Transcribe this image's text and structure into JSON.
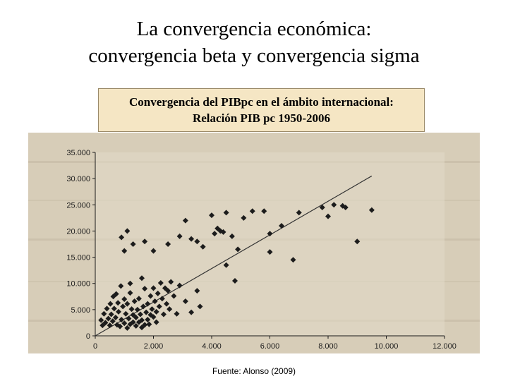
{
  "slide": {
    "title_line1": "La convergencia económica:",
    "title_line2": "convergencia beta y convergencia sigma",
    "source": "Fuente: Alonso (2009)"
  },
  "caption": {
    "line1": "Convergencia del PIBpc en el ámbito internacional:",
    "line2": "Relación PIB pc 1950-2006"
  },
  "colors": {
    "paper": "#d7cdb8",
    "marker": "#1c1c1c",
    "caption_bg": "#f5e6c4"
  },
  "chart_data": {
    "type": "scatter",
    "title": "",
    "xlabel": "",
    "ylabel": "",
    "xlim": [
      0,
      12000
    ],
    "ylim": [
      0,
      35000
    ],
    "x_ticks": [
      0,
      2000,
      4000,
      6000,
      8000,
      10000,
      12000
    ],
    "x_tick_labels": [
      "0",
      "2.000",
      "4.000",
      "6.000",
      "8.000",
      "10.000",
      "12.000"
    ],
    "y_ticks": [
      0,
      5000,
      10000,
      15000,
      20000,
      25000,
      30000,
      35000
    ],
    "y_tick_labels": [
      "0",
      "5.000",
      "10.000",
      "15.000",
      "20.000",
      "25.000",
      "30.000",
      "35.000"
    ],
    "grid": false,
    "legend": "none",
    "trend_line": {
      "x": [
        0,
        9500
      ],
      "y": [
        0,
        30500
      ]
    },
    "points": [
      [
        200,
        3000
      ],
      [
        250,
        2000
      ],
      [
        300,
        4200
      ],
      [
        350,
        2500
      ],
      [
        400,
        5200
      ],
      [
        450,
        3300
      ],
      [
        500,
        2000
      ],
      [
        520,
        6100
      ],
      [
        550,
        4100
      ],
      [
        600,
        2800
      ],
      [
        620,
        7500
      ],
      [
        650,
        5200
      ],
      [
        700,
        3500
      ],
      [
        720,
        8000
      ],
      [
        750,
        2100
      ],
      [
        780,
        6300
      ],
      [
        800,
        4600
      ],
      [
        850,
        1800
      ],
      [
        880,
        9500
      ],
      [
        900,
        3100
      ],
      [
        950,
        5600
      ],
      [
        1000,
        2400
      ],
      [
        1000,
        7000
      ],
      [
        1050,
        4200
      ],
      [
        1100,
        1500
      ],
      [
        1100,
        6100
      ],
      [
        1150,
        3300
      ],
      [
        1200,
        8200
      ],
      [
        1200,
        2200
      ],
      [
        1250,
        5100
      ],
      [
        1300,
        4000
      ],
      [
        1300,
        2600
      ],
      [
        1350,
        6600
      ],
      [
        1400,
        1900
      ],
      [
        1400,
        3500
      ],
      [
        1450,
        5000
      ],
      [
        1500,
        2600
      ],
      [
        1500,
        7100
      ],
      [
        1550,
        4100
      ],
      [
        1600,
        3000
      ],
      [
        1600,
        1600
      ],
      [
        1650,
        5600
      ],
      [
        1700,
        2100
      ],
      [
        1700,
        9000
      ],
      [
        1750,
        4500
      ],
      [
        1800,
        3100
      ],
      [
        1800,
        6100
      ],
      [
        1850,
        2200
      ],
      [
        1900,
        7600
      ],
      [
        1900,
        4000
      ],
      [
        1950,
        5100
      ],
      [
        2000,
        3600
      ],
      [
        2000,
        9100
      ],
      [
        2050,
        6600
      ],
      [
        2100,
        4600
      ],
      [
        2100,
        2600
      ],
      [
        2150,
        8100
      ],
      [
        2200,
        5600
      ],
      [
        2250,
        10100
      ],
      [
        2300,
        7100
      ],
      [
        2350,
        4100
      ],
      [
        2400,
        9100
      ],
      [
        2450,
        6100
      ],
      [
        2500,
        8600
      ],
      [
        2550,
        5100
      ],
      [
        2600,
        10300
      ],
      [
        2700,
        7600
      ],
      [
        2800,
        4200
      ],
      [
        2900,
        9600
      ],
      [
        3100,
        6600
      ],
      [
        3300,
        4500
      ],
      [
        3500,
        8600
      ],
      [
        3600,
        5600
      ],
      [
        2500,
        17500
      ],
      [
        2900,
        19000
      ],
      [
        3100,
        22000
      ],
      [
        3300,
        18500
      ],
      [
        3500,
        18000
      ],
      [
        4000,
        23000
      ],
      [
        4100,
        19500
      ],
      [
        4200,
        20500
      ],
      [
        4300,
        20000
      ],
      [
        4400,
        19800
      ],
      [
        4500,
        23500
      ],
      [
        4700,
        19000
      ],
      [
        4900,
        16500
      ],
      [
        5100,
        22500
      ],
      [
        5400,
        23800
      ],
      [
        5800,
        23800
      ],
      [
        6000,
        19500
      ],
      [
        6000,
        16000
      ],
      [
        6800,
        14500
      ],
      [
        6400,
        21000
      ],
      [
        7000,
        23500
      ],
      [
        7800,
        24500
      ],
      [
        8200,
        25000
      ],
      [
        8000,
        22800
      ],
      [
        8500,
        24800
      ],
      [
        8600,
        24500
      ],
      [
        9000,
        18000
      ],
      [
        9500,
        24000
      ],
      [
        1100,
        20000
      ],
      [
        1000,
        16200
      ],
      [
        900,
        18800
      ],
      [
        1300,
        17500
      ],
      [
        1700,
        18000
      ],
      [
        2000,
        16200
      ],
      [
        3700,
        17000
      ],
      [
        4500,
        13500
      ],
      [
        4800,
        10500
      ],
      [
        1200,
        10000
      ],
      [
        1600,
        11000
      ]
    ]
  }
}
